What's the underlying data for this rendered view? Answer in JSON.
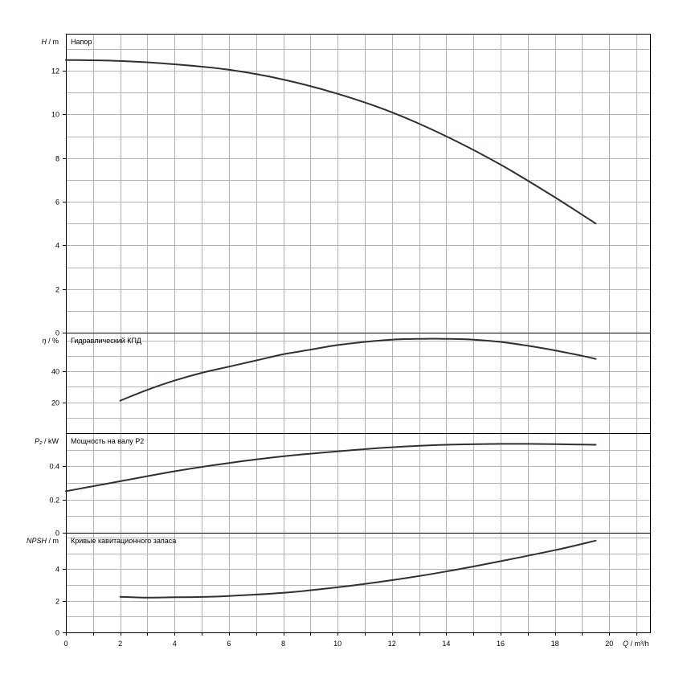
{
  "chart_data": {
    "type": "line",
    "x_axis": {
      "symbol": "Q",
      "unit": "m³/h",
      "range": [
        0,
        21.5
      ],
      "ticks": [
        0,
        2,
        4,
        6,
        8,
        10,
        12,
        14,
        16,
        18,
        20
      ]
    },
    "panels": [
      {
        "id": "head",
        "title": "Напор",
        "y_symbol": "H",
        "y_unit": "m",
        "ylim": [
          0,
          13.7
        ],
        "yticks": [
          0,
          2,
          4,
          6,
          8,
          10,
          12
        ],
        "grid": true,
        "series": [
          {
            "x": [
              0,
              2,
              4,
              6,
              8,
              10,
              12,
              14,
              16,
              18,
              19.5
            ],
            "y": [
              12.5,
              12.45,
              12.3,
              12.05,
              11.6,
              10.95,
              10.1,
              9.0,
              7.7,
              6.2,
              5.0
            ]
          }
        ]
      },
      {
        "id": "efficiency",
        "title": "Гидравлический КПД",
        "y_symbol": "η",
        "y_unit": "%",
        "ylim": [
          0,
          65
        ],
        "yticks": [
          20,
          40
        ],
        "grid": true,
        "series": [
          {
            "x": [
              2,
              3,
              4,
              5,
              6,
              7,
              8,
              9,
              10,
              11,
              12,
              13,
              14,
              15,
              16,
              17,
              18,
              19,
              19.5
            ],
            "y": [
              21,
              28,
              34,
              39,
              43,
              47,
              51,
              54,
              57,
              59,
              60.5,
              61,
              61,
              60.5,
              59,
              56.5,
              53.5,
              50,
              48
            ]
          }
        ]
      },
      {
        "id": "power",
        "title": "Мощность на валу P2",
        "y_symbol": "P₂",
        "y_unit": "kW",
        "ylim": [
          0,
          0.6
        ],
        "yticks": [
          0,
          0.2,
          0.4
        ],
        "grid": true,
        "series": [
          {
            "x": [
              0,
              2,
              4,
              6,
              8,
              10,
              12,
              14,
              16,
              17,
              18,
              19.5
            ],
            "y": [
              0.25,
              0.31,
              0.37,
              0.42,
              0.46,
              0.49,
              0.515,
              0.53,
              0.535,
              0.535,
              0.533,
              0.53
            ]
          }
        ]
      },
      {
        "id": "npsh",
        "title": "Кривые кавитационного запаса",
        "y_symbol": "NPSH",
        "y_unit": "m",
        "ylim": [
          0,
          6.3
        ],
        "yticks": [
          0,
          2,
          4
        ],
        "grid": true,
        "series": [
          {
            "x": [
              2,
              3,
              4,
              5,
              6,
              8,
              10,
              12,
              14,
              16,
              18,
              19.5
            ],
            "y": [
              2.25,
              2.2,
              2.22,
              2.24,
              2.3,
              2.5,
              2.85,
              3.3,
              3.85,
              4.5,
              5.2,
              5.8
            ]
          }
        ]
      }
    ]
  }
}
